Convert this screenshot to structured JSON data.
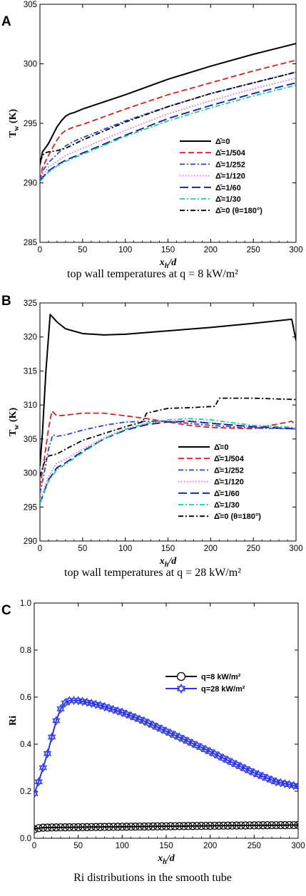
{
  "chart_data": [
    {
      "panel": "A",
      "type": "line",
      "caption": "top wall temperatures at q = 8 kW/m²",
      "xlabel": "x_h/d",
      "ylabel": "T_w (K)",
      "xlim": [
        0,
        300
      ],
      "ylim": [
        285,
        305
      ],
      "xticks": [
        0,
        50,
        100,
        150,
        200,
        250,
        300
      ],
      "yticks": [
        285,
        290,
        295,
        300,
        305
      ],
      "legend_position": "lower-right",
      "series": [
        {
          "name": "Δ̄=0",
          "color": "#000000",
          "style": "solid",
          "x": [
            0,
            3,
            10,
            20,
            25,
            30,
            35,
            40,
            50,
            100,
            150,
            200,
            250,
            300
          ],
          "y": [
            291.5,
            292.6,
            293.3,
            294.7,
            295.2,
            295.6,
            295.8,
            295.9,
            296.2,
            297.4,
            298.7,
            299.8,
            300.8,
            301.7
          ]
        },
        {
          "name": "Δ̄=1/504",
          "color": "#d42020",
          "style": "dash",
          "x": [
            0,
            3,
            10,
            20,
            25,
            30,
            40,
            50,
            100,
            150,
            200,
            250,
            300
          ],
          "y": [
            290.2,
            291.3,
            292.3,
            293.6,
            294.1,
            294.4,
            294.7,
            294.9,
            296.2,
            297.4,
            298.4,
            299.4,
            300.3
          ]
        },
        {
          "name": "Δ̄=1/252",
          "color": "#2b46d6",
          "style": "dashdot",
          "x": [
            0,
            3,
            10,
            20,
            30,
            40,
            50,
            100,
            150,
            200,
            250,
            300
          ],
          "y": [
            290.2,
            291.0,
            291.7,
            292.4,
            293.1,
            293.5,
            293.8,
            295.2,
            296.4,
            297.5,
            298.4,
            299.3
          ]
        },
        {
          "name": "Δ̄=1/120",
          "color": "#e070e0",
          "style": "dot",
          "x": [
            0,
            10,
            20,
            30,
            50,
            100,
            150,
            200,
            250,
            300
          ],
          "y": [
            290.3,
            291.3,
            291.8,
            292.3,
            292.9,
            294.4,
            295.8,
            296.9,
            297.9,
            298.8
          ]
        },
        {
          "name": "Δ̄=1/60",
          "color": "#0c1c8c",
          "style": "longdash",
          "x": [
            0,
            10,
            20,
            30,
            50,
            100,
            150,
            200,
            250,
            300
          ],
          "y": [
            290.2,
            291.0,
            291.5,
            291.9,
            292.5,
            294.0,
            295.4,
            296.5,
            297.5,
            298.4
          ]
        },
        {
          "name": "Δ̄=1/30",
          "color": "#22c8a0",
          "style": "dashdot",
          "x": [
            0,
            10,
            20,
            30,
            50,
            100,
            150,
            200,
            250,
            300
          ],
          "y": [
            290.1,
            290.9,
            291.4,
            291.8,
            292.4,
            293.9,
            295.2,
            296.3,
            297.3,
            298.2
          ]
        },
        {
          "name": "Δ̄=0 (θ=180°)",
          "color": "#000000",
          "style": "dashdot",
          "x": [
            0,
            5,
            10,
            20,
            30,
            50,
            100,
            150,
            200,
            250,
            300
          ],
          "y": [
            291.8,
            292.5,
            292.6,
            292.7,
            292.9,
            293.6,
            295.1,
            296.4,
            297.5,
            298.4,
            299.3
          ]
        }
      ]
    },
    {
      "panel": "B",
      "type": "line",
      "caption": "top wall temperatures at q = 28 kW/m²",
      "xlabel": "x_h/d",
      "ylabel": "T_w (K)",
      "xlim": [
        0,
        300
      ],
      "ylim": [
        290,
        325
      ],
      "xticks": [
        0,
        50,
        100,
        150,
        200,
        250,
        300
      ],
      "yticks": [
        290,
        295,
        300,
        305,
        310,
        315,
        320,
        325
      ],
      "legend_position": "lower-right",
      "series": [
        {
          "name": "Δ̄=0",
          "color": "#000000",
          "style": "solid",
          "x": [
            0,
            3,
            7,
            12,
            20,
            30,
            50,
            75,
            100,
            150,
            200,
            250,
            295,
            300
          ],
          "y": [
            301.0,
            306.0,
            315.0,
            323.3,
            322.2,
            321.2,
            320.5,
            320.3,
            320.4,
            320.9,
            321.4,
            322.0,
            322.6,
            319.5
          ]
        },
        {
          "name": "Δ̄=1/504",
          "color": "#d42020",
          "style": "dash",
          "x": [
            0,
            5,
            10,
            14,
            20,
            30,
            50,
            75,
            100,
            125,
            150,
            175,
            200,
            250,
            295,
            300
          ],
          "y": [
            298.0,
            302.0,
            306.5,
            309.1,
            308.4,
            308.5,
            308.8,
            308.8,
            308.4,
            308.0,
            307.5,
            307.0,
            306.7,
            306.5,
            307.6,
            307.0
          ]
        },
        {
          "name": "Δ̄=1/252",
          "color": "#2b46d6",
          "style": "dashdot",
          "x": [
            0,
            5,
            10,
            15,
            20,
            30,
            50,
            75,
            100,
            125,
            150,
            175,
            200,
            250,
            300
          ],
          "y": [
            297.0,
            300.0,
            303.5,
            305.6,
            305.4,
            305.6,
            306.3,
            307.0,
            307.5,
            307.6,
            307.6,
            307.3,
            307.0,
            306.6,
            306.5
          ]
        },
        {
          "name": "Δ̄=1/120",
          "color": "#e070e0",
          "style": "dot",
          "x": [
            0,
            10,
            20,
            30,
            50,
            75,
            100,
            125,
            150,
            175,
            200,
            250,
            300
          ],
          "y": [
            296.0,
            299.5,
            301.5,
            302.0,
            303.5,
            305.2,
            306.5,
            307.3,
            307.6,
            307.7,
            307.4,
            306.8,
            306.4
          ]
        },
        {
          "name": "Δ̄=1/60",
          "color": "#0c1c8c",
          "style": "longdash",
          "x": [
            0,
            10,
            20,
            30,
            50,
            75,
            100,
            125,
            150,
            175,
            200,
            250,
            300
          ],
          "y": [
            295.5,
            299.0,
            300.8,
            301.5,
            303.2,
            305.0,
            306.3,
            307.1,
            307.5,
            307.6,
            307.3,
            306.8,
            306.5
          ]
        },
        {
          "name": "Δ̄=1/30",
          "color": "#22c8a0",
          "style": "dashdot",
          "x": [
            0,
            10,
            20,
            30,
            50,
            75,
            100,
            125,
            150,
            175,
            200,
            250,
            300
          ],
          "y": [
            295.5,
            298.8,
            300.5,
            301.3,
            303.0,
            305.0,
            306.4,
            307.3,
            307.8,
            308.0,
            307.8,
            307.0,
            306.7
          ]
        },
        {
          "name": "Δ̄=0 (θ=180°)",
          "color": "#000000",
          "style": "dashdot",
          "x": [
            0,
            5,
            10,
            20,
            30,
            50,
            75,
            100,
            120,
            125,
            150,
            175,
            205,
            210,
            250,
            300
          ],
          "y": [
            299.5,
            301.5,
            302.5,
            302.8,
            303.5,
            304.8,
            305.8,
            306.8,
            307.5,
            308.8,
            309.5,
            309.6,
            309.8,
            311.0,
            311.0,
            310.8
          ]
        }
      ]
    },
    {
      "panel": "C",
      "type": "line",
      "caption": "Ri distributions in the smooth tube",
      "xlabel": "x_h/d",
      "ylabel": "Ri",
      "xlim": [
        0,
        300
      ],
      "ylim": [
        0.0,
        1.0
      ],
      "xticks": [
        0,
        50,
        100,
        150,
        200,
        250,
        300
      ],
      "yticks": [
        0.0,
        0.2,
        0.4,
        0.6,
        0.8,
        1.0
      ],
      "legend_position": "upper-right",
      "series": [
        {
          "name": "q=8 kW/m²",
          "color": "#000000",
          "marker": "circle",
          "x": [
            0,
            5,
            10,
            20,
            50,
            100,
            150,
            200,
            250,
            300
          ],
          "y": [
            0.038,
            0.043,
            0.045,
            0.046,
            0.047,
            0.049,
            0.051,
            0.053,
            0.055,
            0.056
          ]
        },
        {
          "name": "q=28 kW/m²",
          "color": "#2b35e0",
          "marker": "star",
          "x": [
            0,
            5,
            10,
            15,
            20,
            25,
            30,
            35,
            40,
            45,
            50,
            60,
            75,
            100,
            125,
            150,
            175,
            200,
            225,
            250,
            275,
            300
          ],
          "y": [
            0.19,
            0.24,
            0.3,
            0.36,
            0.43,
            0.5,
            0.55,
            0.575,
            0.585,
            0.586,
            0.585,
            0.578,
            0.565,
            0.535,
            0.498,
            0.455,
            0.412,
            0.368,
            0.322,
            0.278,
            0.24,
            0.22
          ]
        }
      ]
    }
  ]
}
